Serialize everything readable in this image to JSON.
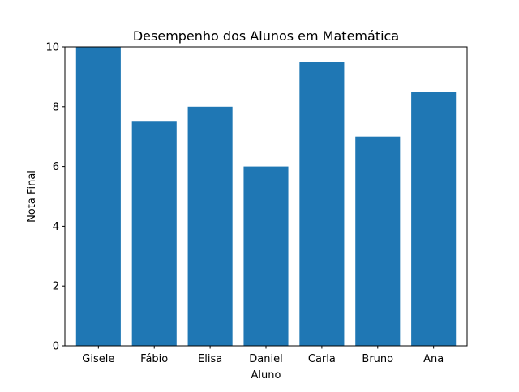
{
  "chart_data": {
    "type": "bar",
    "title": "Desempenho dos Alunos em Matemática",
    "xlabel": "Aluno",
    "ylabel": "Nota Final",
    "categories": [
      "Gisele",
      "Fábio",
      "Elisa",
      "Daniel",
      "Carla",
      "Bruno",
      "Ana"
    ],
    "values": [
      10,
      7.5,
      8,
      6,
      9.5,
      7,
      8.5
    ],
    "ylim": [
      0,
      10
    ],
    "yticks": [
      0,
      2,
      4,
      6,
      8,
      10
    ],
    "grid": false,
    "bar_color": "#1f77b4"
  }
}
